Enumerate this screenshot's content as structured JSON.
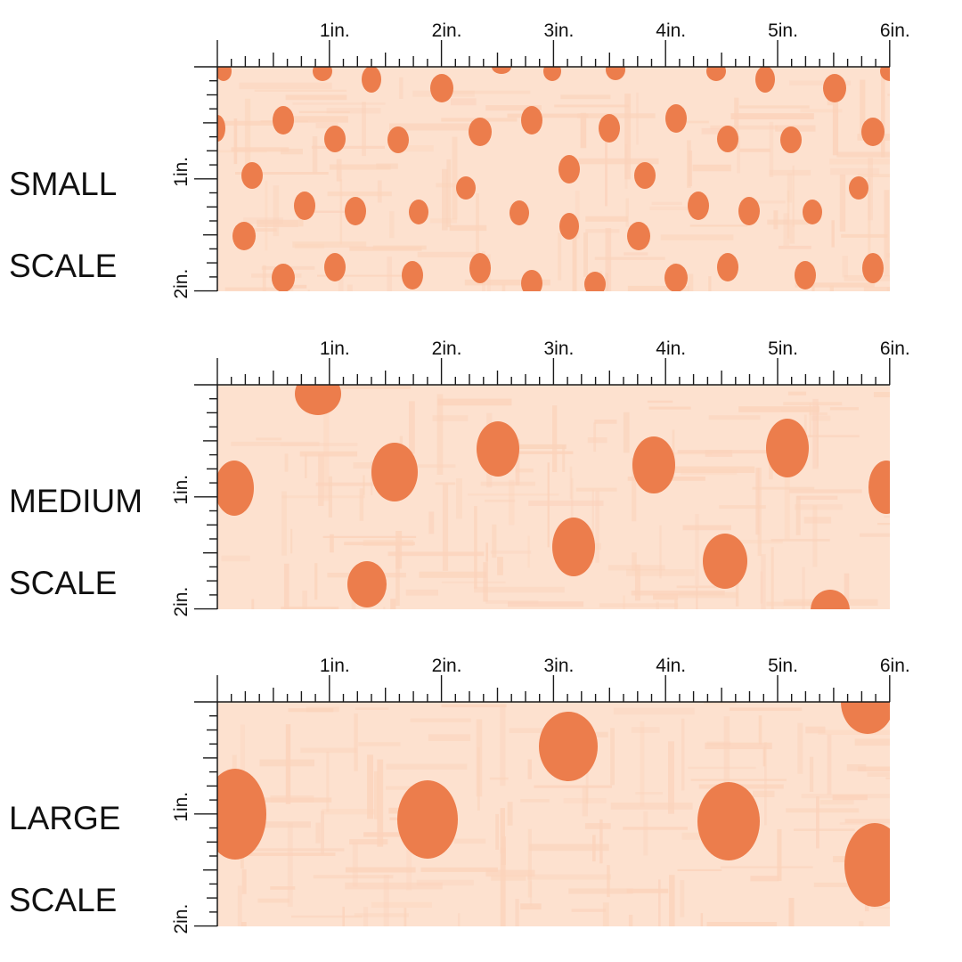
{
  "rows": [
    {
      "id": "small",
      "label_line1": "SMALL",
      "label_line2": "SCALE",
      "dots_visible": 50
    },
    {
      "id": "medium",
      "label_line1": "MEDIUM",
      "label_line2": "SCALE",
      "dots_visible": 13
    },
    {
      "id": "large",
      "label_line1": "LARGE",
      "label_line2": "SCALE",
      "dots_visible": 7
    }
  ],
  "ruler": {
    "horizontal_labels": [
      "1in.",
      "2in.",
      "3in.",
      "4in.",
      "5in.",
      "6in."
    ],
    "vertical_labels": [
      "1in.",
      "2in."
    ]
  },
  "colors": {
    "fabric_background": "#fde1cf",
    "fabric_texture": "#fbd3bb",
    "dot": "#ec7d4c",
    "ruler": "#1a1a1a",
    "label_text": "#111111"
  }
}
